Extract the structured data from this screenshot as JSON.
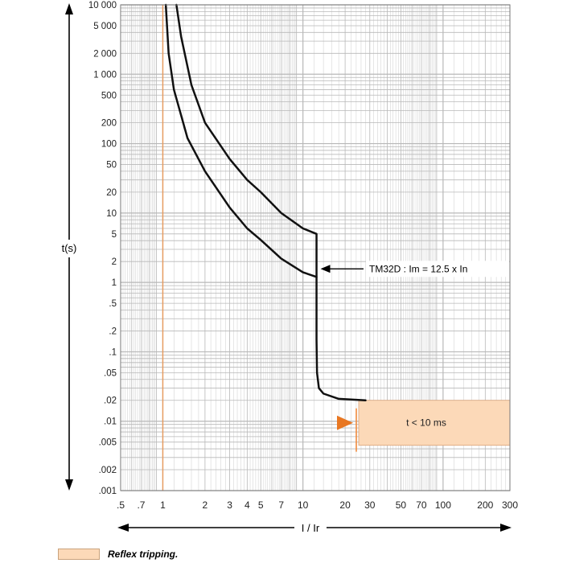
{
  "chart_data": {
    "type": "line",
    "xlabel": "I / Ir",
    "ylabel": "t(s)",
    "xscale": "log",
    "yscale": "log",
    "xlim": [
      0.5,
      300
    ],
    "ylim": [
      0.001,
      10000
    ],
    "grid": true,
    "x_ticks": [
      0.5,
      0.7,
      1,
      2,
      3,
      4,
      5,
      7,
      10,
      20,
      30,
      50,
      70,
      100,
      200,
      300
    ],
    "x_tick_labels": [
      ".5",
      ".7",
      "1",
      "2",
      "3",
      "4",
      "5",
      "7",
      "10",
      "20",
      "30",
      "50",
      "70",
      "100",
      "200",
      "300"
    ],
    "y_ticks": [
      0.001,
      0.002,
      0.005,
      0.01,
      0.02,
      0.05,
      0.1,
      0.2,
      0.5,
      1,
      2,
      5,
      10,
      20,
      50,
      100,
      200,
      500,
      1000,
      2000,
      5000,
      10000
    ],
    "y_tick_labels": [
      ".001",
      ".002",
      ".005",
      ".01",
      ".02",
      ".05",
      ".1",
      ".2",
      ".5",
      "1",
      "2",
      "5",
      "10",
      "20",
      "50",
      "100",
      "200",
      "500",
      "1 000",
      "2 000",
      "5 000",
      "10 000"
    ],
    "series": [
      {
        "values": [
          [
            1.05,
            10000
          ],
          [
            1.1,
            2000
          ],
          [
            1.2,
            600
          ],
          [
            1.5,
            120
          ],
          [
            2,
            40
          ],
          [
            3,
            12
          ],
          [
            4,
            6
          ],
          [
            5,
            4.1
          ],
          [
            7,
            2.2
          ],
          [
            10,
            1.4
          ],
          [
            12.5,
            1.2
          ],
          [
            12.5,
            0.15
          ],
          [
            12.6,
            0.05
          ],
          [
            13,
            0.03
          ],
          [
            14,
            0.025
          ],
          [
            18,
            0.021
          ],
          [
            28,
            0.02
          ]
        ]
      },
      {
        "values": [
          [
            1.25,
            10000
          ],
          [
            1.35,
            3500
          ],
          [
            1.6,
            700
          ],
          [
            2,
            200
          ],
          [
            3,
            60
          ],
          [
            4,
            30
          ],
          [
            5,
            20
          ],
          [
            7,
            10
          ],
          [
            10,
            6
          ],
          [
            12.5,
            5
          ],
          [
            12.5,
            1.2
          ]
        ]
      }
    ],
    "annotations": {
      "tm_label": "TM32D : Im = 12.5 x In",
      "tm_arrow_point": [
        12.5,
        1.2
      ],
      "reflex_label": "t < 10 ms",
      "reflex_band": {
        "x_from": 25,
        "x_to": 300,
        "y_from": 0.0045,
        "y_to": 0.02
      },
      "ref_line_x": 1
    },
    "legend": {
      "label": "Reflex tripping.",
      "position": "bottom-left"
    },
    "colors": {
      "curve": "#111111",
      "grid": "#b8b8b8",
      "ref_line": "#e89a5c",
      "band_fill": "#fcd9b8",
      "band_edge": "#d9a47a",
      "reflex_arrow": "#e87722",
      "band_divider": "#f08a3c"
    }
  }
}
